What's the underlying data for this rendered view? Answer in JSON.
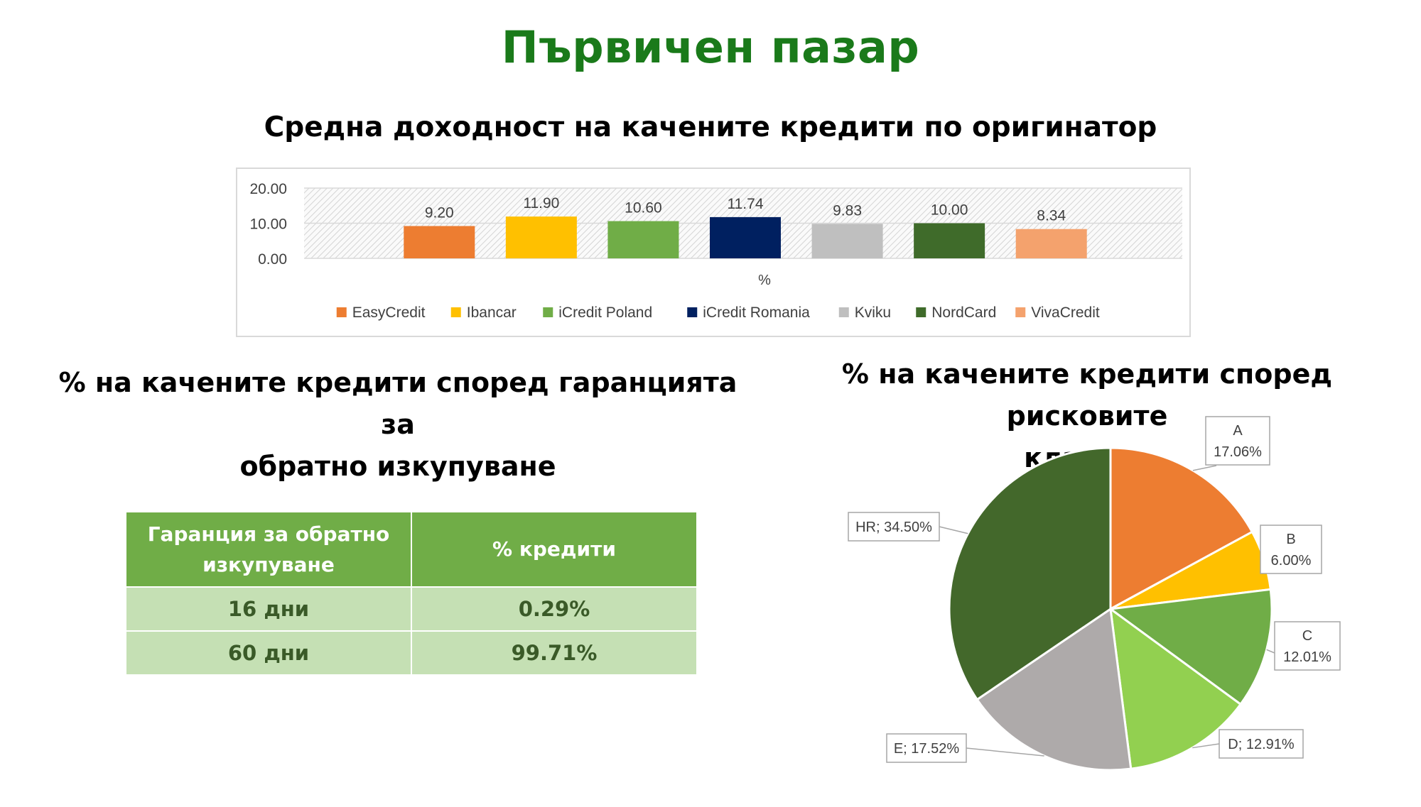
{
  "page": {
    "title": "Първичен пазар"
  },
  "bar_section": {
    "title": "Средна доходност на качените кредити по оригинатор"
  },
  "table_section": {
    "title_line1": "% на качените кредити според гаранцията за",
    "title_line2": "обратно изкупуване",
    "headers": [
      "Гаранция за обратно изкупуване",
      "% кредити"
    ],
    "header1_line1": "Гаранция за обратно",
    "header1_line2": "изкупуване",
    "rows": [
      {
        "label": "16 дни",
        "value": "0.29%"
      },
      {
        "label": "60 дни",
        "value": "99.71%"
      }
    ]
  },
  "pie_section": {
    "title_line1": "% на качените кредити според рисковите",
    "title_line2": "класове"
  },
  "chart_data": [
    {
      "type": "bar",
      "title": "Средна доходност на качените кредити по оригинатор",
      "xlabel": "%",
      "ylabel": "",
      "categories": [
        "%"
      ],
      "ylim": [
        0,
        20
      ],
      "yticks": [
        "0.00",
        "10.00",
        "20.00"
      ],
      "grid": "hatched plot area",
      "legend": "bottom",
      "series": [
        {
          "name": "EasyCredit",
          "values": [
            9.2
          ],
          "label": "9.20",
          "color": "#ed7d31"
        },
        {
          "name": "Ibancar",
          "values": [
            11.9
          ],
          "label": "11.90",
          "color": "#ffc000"
        },
        {
          "name": "iCredit Poland",
          "values": [
            10.6
          ],
          "label": "10.60",
          "color": "#70ad47"
        },
        {
          "name": "iCredit Romania",
          "values": [
            11.74
          ],
          "label": "11.74",
          "color": "#002060"
        },
        {
          "name": "Kviku",
          "values": [
            9.83
          ],
          "label": "9.83",
          "color": "#bfbfbf"
        },
        {
          "name": "NordCard",
          "values": [
            10.0
          ],
          "label": "10.00",
          "color": "#3f6b2a"
        },
        {
          "name": "VivaCredit",
          "values": [
            8.34
          ],
          "label": "8.34",
          "color": "#f4a26d"
        }
      ]
    },
    {
      "type": "pie",
      "title": "% на качените кредити според рисковите класове",
      "slices": [
        {
          "name": "A",
          "value": 17.06,
          "label_name": "A",
          "label_value": "17.06%",
          "label_style": "stacked",
          "color": "#ed7d31"
        },
        {
          "name": "B",
          "value": 6.0,
          "label_name": "B",
          "label_value": "6.00%",
          "label_style": "stacked",
          "color": "#ffc000"
        },
        {
          "name": "C",
          "value": 12.01,
          "label_name": "C",
          "label_value": "12.01%",
          "label_style": "stacked",
          "color": "#70ad47"
        },
        {
          "name": "D",
          "value": 12.91,
          "label_text": "D; 12.91%",
          "label_style": "inline",
          "color": "#92d050"
        },
        {
          "name": "E",
          "value": 17.52,
          "label_text": "E; 17.52%",
          "label_style": "inline",
          "color": "#aeaaaa"
        },
        {
          "name": "HR",
          "value": 34.5,
          "label_text": "HR; 34.50%",
          "label_style": "inline",
          "color": "#43682b"
        }
      ]
    }
  ]
}
